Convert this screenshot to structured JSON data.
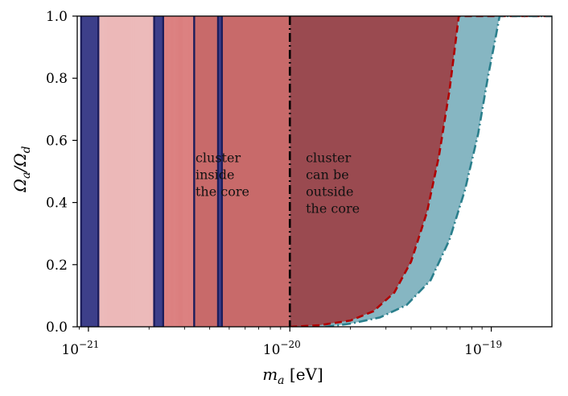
{
  "chart_data": {
    "type": "area",
    "xscale": "log",
    "xlim": [
      8.8e-22,
      2e-19
    ],
    "ylim": [
      0.0,
      1.0
    ],
    "xlabel_main": "m",
    "xlabel_sub": "a",
    "xlabel_unit": " [eV]",
    "ylabel_num": "Ω",
    "ylabel_num_sub": "a",
    "ylabel_den": "/Ω",
    "ylabel_den_sub": "d",
    "xticks": [
      {
        "value": 1e-21,
        "base": "10",
        "exp": "−21"
      },
      {
        "value": 1e-20,
        "base": "10",
        "exp": "−20"
      },
      {
        "value": 1e-19,
        "base": "10",
        "exp": "−19"
      }
    ],
    "yticks": [
      {
        "value": 0.0,
        "label": "0.0"
      },
      {
        "value": 0.2,
        "label": "0.2"
      },
      {
        "value": 0.4,
        "label": "0.4"
      },
      {
        "value": 0.6,
        "label": "0.6"
      },
      {
        "value": 0.8,
        "label": "0.8"
      },
      {
        "value": 1.0,
        "label": "1.0"
      }
    ],
    "blue_bands": [
      {
        "from": 9.2e-22,
        "to": 1.12e-21
      },
      {
        "from": 2.12e-21,
        "to": 2.35e-21
      },
      {
        "from": 4.4e-21,
        "to": 4.6e-21
      }
    ],
    "blue_lines": [
      9.2e-22,
      1.12e-21,
      2.12e-21,
      2.35e-21,
      3.35e-21,
      4.4e-21,
      4.6e-21
    ],
    "light_red_striped": {
      "from": 1.12e-21,
      "to": 2.12e-21
    },
    "mid_red_striped": {
      "from": 2.35e-21,
      "to": 3.35e-21
    },
    "solid_red": {
      "from": 3.35e-21,
      "to": 1e-20
    },
    "core_boundary": 1e-20,
    "red_dashed_curve": {
      "name": "red dashed",
      "x": [
        1e-20,
        1.4e-20,
        2e-20,
        2.6e-20,
        3.3e-20,
        4e-20,
        4.8e-20,
        5.5e-20,
        6.2e-20,
        6.6e-20,
        6.9e-20,
        2e-19
      ],
      "y": [
        0.0,
        0.005,
        0.02,
        0.05,
        0.11,
        0.21,
        0.37,
        0.55,
        0.76,
        0.9,
        1.0,
        1.0
      ]
    },
    "teal_dashdot_curve": {
      "name": "teal dash-dot",
      "x": [
        1.5e-20,
        2e-20,
        2.8e-20,
        3.8e-20,
        5e-20,
        6.2e-20,
        7.4e-20,
        8.6e-20,
        9.6e-20,
        1.05e-19,
        1.1e-19,
        2e-19
      ],
      "y": [
        0.0,
        0.01,
        0.03,
        0.07,
        0.15,
        0.28,
        0.44,
        0.62,
        0.8,
        0.93,
        1.0,
        1.0
      ]
    },
    "annotations": [
      {
        "lines": [
          "cluster",
          "inside",
          "the core"
        ],
        "x": 3.4e-21,
        "y": 0.53
      },
      {
        "lines": [
          "cluster",
          "can be",
          "outside",
          "the core"
        ],
        "x": 1.2e-20,
        "y": 0.53
      }
    ],
    "colors": {
      "navy": "#3d3f8a",
      "navy_line": "#1c1d5c",
      "light_red": "#e6a4a4",
      "mid_red": "#d66f6f",
      "solid_red": "#c86a6a",
      "dark_red": "#9a4a50",
      "teal_fill": "#86b6c2",
      "red_dash": "#b00000",
      "teal_dash": "#2a7f8c"
    }
  }
}
